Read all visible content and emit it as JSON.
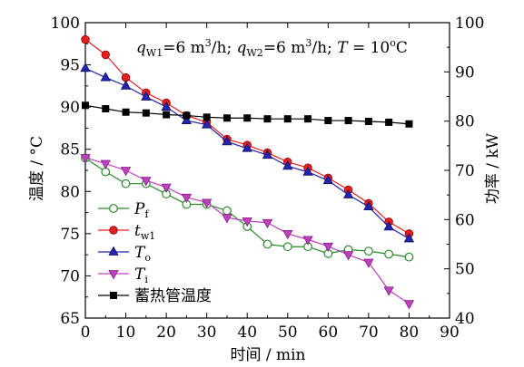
{
  "chart_data": {
    "type": "line",
    "annotation": "q_W1=6 m³/h; q_W2=6 m³/h; T = 10°C",
    "xlabel": "时间 / min",
    "ylabel_left": "温度 / °C",
    "ylabel_right": "功率 / kW",
    "xlim": [
      0,
      90
    ],
    "ylim_left": [
      65,
      100
    ],
    "ylim_right": [
      40,
      100
    ],
    "xticks": [
      0,
      10,
      20,
      30,
      40,
      50,
      60,
      70,
      80,
      90
    ],
    "yticks_left": [
      65,
      70,
      75,
      80,
      85,
      90,
      95,
      100
    ],
    "yticks_right": [
      40,
      50,
      60,
      70,
      80,
      90,
      100
    ],
    "x": [
      0,
      5,
      10,
      15,
      20,
      25,
      30,
      35,
      40,
      45,
      50,
      55,
      60,
      65,
      70,
      75,
      80
    ],
    "legend_position": "bottom-left",
    "series": [
      {
        "name": "Pf",
        "axis": "right",
        "marker": "open-circle",
        "color": "#2a8a2a",
        "values": [
          72.5,
          69.7,
          67.3,
          67.3,
          65.2,
          63.1,
          63.1,
          61.8,
          58.6,
          55.0,
          54.5,
          54.5,
          53.1,
          53.9,
          53.6,
          53.0,
          52.4
        ]
      },
      {
        "name": "tw1",
        "axis": "left",
        "marker": "filled-circle",
        "color": "#e81e1e",
        "values": [
          98.0,
          96.2,
          93.5,
          91.7,
          90.5,
          89.0,
          88.2,
          86.2,
          85.5,
          84.6,
          83.5,
          82.8,
          81.6,
          80.2,
          78.6,
          76.4,
          75.0
        ]
      },
      {
        "name": "To",
        "axis": "left",
        "marker": "filled-triangle-up",
        "color": "#2424b0",
        "values": [
          94.6,
          93.5,
          92.5,
          91.2,
          90.0,
          88.4,
          87.9,
          85.9,
          85.1,
          84.3,
          83.0,
          82.3,
          81.3,
          79.6,
          78.2,
          75.8,
          74.4
        ]
      },
      {
        "name": "Ti",
        "axis": "left",
        "marker": "filled-triangle-down",
        "color": "#c040c0",
        "values": [
          84.0,
          83.3,
          82.5,
          81.3,
          80.5,
          79.3,
          78.7,
          76.9,
          76.5,
          76.3,
          75.0,
          74.3,
          73.5,
          72.5,
          71.6,
          68.3,
          66.7
        ]
      },
      {
        "name": "蓄热管温度",
        "axis": "left",
        "marker": "filled-square",
        "color": "#000000",
        "values": [
          90.2,
          89.8,
          89.4,
          89.3,
          89.1,
          89.0,
          88.8,
          88.7,
          88.7,
          88.6,
          88.6,
          88.6,
          88.4,
          88.4,
          88.3,
          88.2,
          88.0
        ]
      }
    ]
  }
}
